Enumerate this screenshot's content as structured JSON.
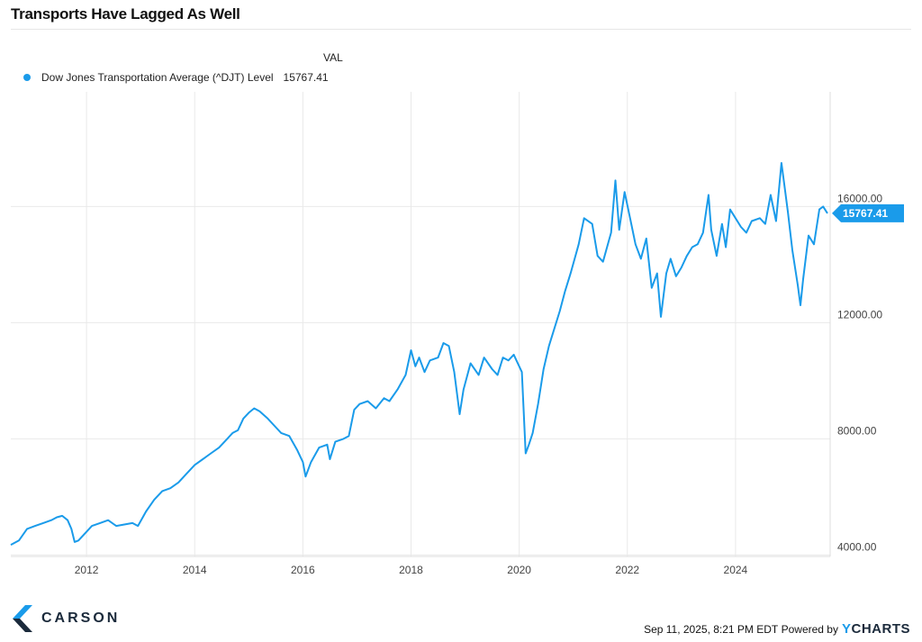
{
  "page": {
    "title": "Transports Have Lagged As Well"
  },
  "legend": {
    "column_header": "VAL",
    "series_label": "Dow Jones Transportation Average (^DJT) Level",
    "series_value": "15767.41"
  },
  "footer": {
    "brand": "CARSON",
    "timestamp": "Sep 11, 2025, 8:21 PM EDT",
    "powered_by": "Powered by",
    "provider_y": "Y",
    "provider_rest": "CHARTS"
  },
  "colors": {
    "series": "#1a9bea",
    "grid": "#e9e9e9",
    "axis_text": "#444444"
  },
  "chart_data": {
    "type": "line",
    "title": "Transports Have Lagged As Well",
    "xlabel": "",
    "ylabel": "",
    "xlim": [
      2010.6,
      2025.75
    ],
    "ylim": [
      3950,
      19950
    ],
    "x_ticks": [
      2012,
      2014,
      2016,
      2018,
      2020,
      2022,
      2024
    ],
    "x_tick_labels": [
      "2012",
      "2014",
      "2016",
      "2018",
      "2020",
      "2022",
      "2024"
    ],
    "y_ticks": [
      4000,
      8000,
      12000,
      16000
    ],
    "y_tick_labels": [
      "4000.00",
      "8000.00",
      "12000.00",
      "16000.00"
    ],
    "grid": true,
    "legend_position": "top-left",
    "last_value_label": "15767.41",
    "series": [
      {
        "name": "Dow Jones Transportation Average (^DJT) Level",
        "x": [
          2010.6,
          2010.75,
          2010.9,
          2011.05,
          2011.2,
          2011.35,
          2011.45,
          2011.55,
          2011.65,
          2011.72,
          2011.78,
          2011.85,
          2011.95,
          2012.1,
          2012.25,
          2012.4,
          2012.55,
          2012.7,
          2012.85,
          2012.95,
          2013.1,
          2013.25,
          2013.4,
          2013.55,
          2013.7,
          2013.85,
          2014.0,
          2014.15,
          2014.3,
          2014.45,
          2014.6,
          2014.7,
          2014.8,
          2014.9,
          2015.0,
          2015.1,
          2015.2,
          2015.35,
          2015.5,
          2015.6,
          2015.75,
          2015.9,
          2016.0,
          2016.05,
          2016.15,
          2016.3,
          2016.45,
          2016.5,
          2016.6,
          2016.75,
          2016.85,
          2016.95,
          2017.05,
          2017.2,
          2017.35,
          2017.5,
          2017.6,
          2017.75,
          2017.9,
          2018.0,
          2018.08,
          2018.15,
          2018.25,
          2018.35,
          2018.5,
          2018.6,
          2018.7,
          2018.8,
          2018.9,
          2018.97,
          2019.1,
          2019.25,
          2019.35,
          2019.5,
          2019.6,
          2019.7,
          2019.8,
          2019.9,
          2020.05,
          2020.12,
          2020.18,
          2020.25,
          2020.35,
          2020.45,
          2020.55,
          2020.65,
          2020.75,
          2020.85,
          2020.95,
          2021.1,
          2021.2,
          2021.35,
          2021.45,
          2021.55,
          2021.7,
          2021.78,
          2021.85,
          2021.95,
          2022.05,
          2022.15,
          2022.25,
          2022.35,
          2022.45,
          2022.55,
          2022.62,
          2022.72,
          2022.8,
          2022.9,
          2023.0,
          2023.1,
          2023.2,
          2023.3,
          2023.4,
          2023.5,
          2023.55,
          2023.65,
          2023.75,
          2023.82,
          2023.9,
          2024.0,
          2024.1,
          2024.2,
          2024.3,
          2024.45,
          2024.55,
          2024.65,
          2024.75,
          2024.85,
          2024.9,
          2024.97,
          2025.05,
          2025.15,
          2025.2,
          2025.25,
          2025.35,
          2025.45,
          2025.55,
          2025.62,
          2025.7
        ],
        "values": [
          4350,
          4500,
          4900,
          5000,
          5100,
          5200,
          5300,
          5350,
          5200,
          4900,
          4450,
          4500,
          4700,
          5000,
          5100,
          5200,
          5000,
          5050,
          5100,
          5000,
          5500,
          5900,
          6200,
          6300,
          6500,
          6800,
          7100,
          7300,
          7500,
          7700,
          8000,
          8200,
          8300,
          8700,
          8900,
          9050,
          8950,
          8700,
          8400,
          8200,
          8100,
          7600,
          7200,
          6700,
          7200,
          7700,
          7800,
          7300,
          7900,
          8000,
          8100,
          9000,
          9200,
          9300,
          9050,
          9400,
          9300,
          9700,
          10200,
          11050,
          10500,
          10800,
          10300,
          10700,
          10800,
          11300,
          11200,
          10300,
          8850,
          9700,
          10600,
          10200,
          10800,
          10400,
          10200,
          10800,
          10700,
          10900,
          10300,
          7500,
          7800,
          8200,
          9200,
          10400,
          11200,
          11800,
          12400,
          13100,
          13700,
          14700,
          15600,
          15400,
          14300,
          14100,
          15100,
          16900,
          15200,
          16500,
          15600,
          14700,
          14200,
          14900,
          13200,
          13700,
          12200,
          13700,
          14200,
          13600,
          13900,
          14300,
          14600,
          14700,
          15100,
          16400,
          15200,
          14300,
          15400,
          14600,
          15900,
          15600,
          15300,
          15100,
          15500,
          15600,
          15400,
          16400,
          15500,
          17500,
          16800,
          15800,
          14500,
          13300,
          12600,
          13500,
          15000,
          14700,
          15900,
          16000,
          15767.41
        ]
      }
    ]
  }
}
